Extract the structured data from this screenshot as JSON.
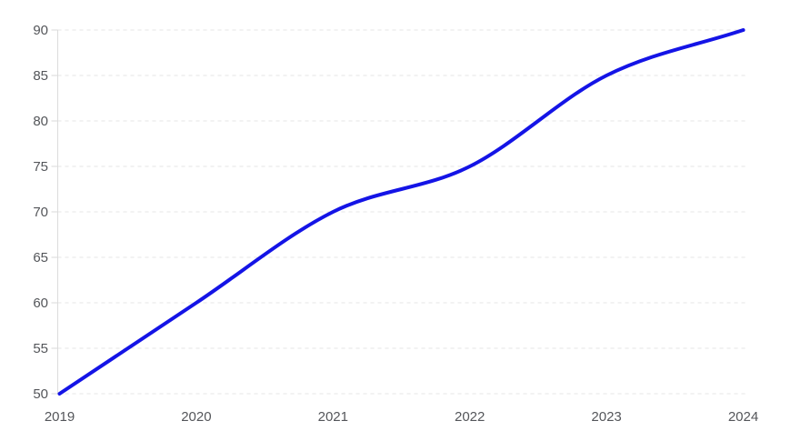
{
  "chart_data": {
    "type": "line",
    "title": "",
    "xlabel": "",
    "ylabel": "",
    "x": [
      2019,
      2020,
      2021,
      2022,
      2023,
      2024
    ],
    "x_tick_labels": [
      "2019",
      "2020",
      "2021",
      "2022",
      "2023",
      "2024"
    ],
    "series": [
      {
        "name": "series-1",
        "values": [
          50,
          60,
          70,
          75,
          85,
          90
        ]
      }
    ],
    "ylim": [
      50,
      90
    ],
    "y_ticks": [
      50,
      55,
      60,
      65,
      70,
      75,
      80,
      85,
      90
    ],
    "y_tick_labels": [
      "50",
      "55",
      "60",
      "65",
      "70",
      "75",
      "80",
      "85",
      "90"
    ],
    "grid": "horizontal-dashed",
    "legend": "none",
    "interpolation": "monotone-smooth",
    "colors": {
      "line": "#1414e6",
      "grid": "#e4e4e4",
      "axis": "#dcdcdc",
      "tick": "#d9d9d9",
      "labels": "#54565a",
      "background": "#ffffff"
    }
  }
}
